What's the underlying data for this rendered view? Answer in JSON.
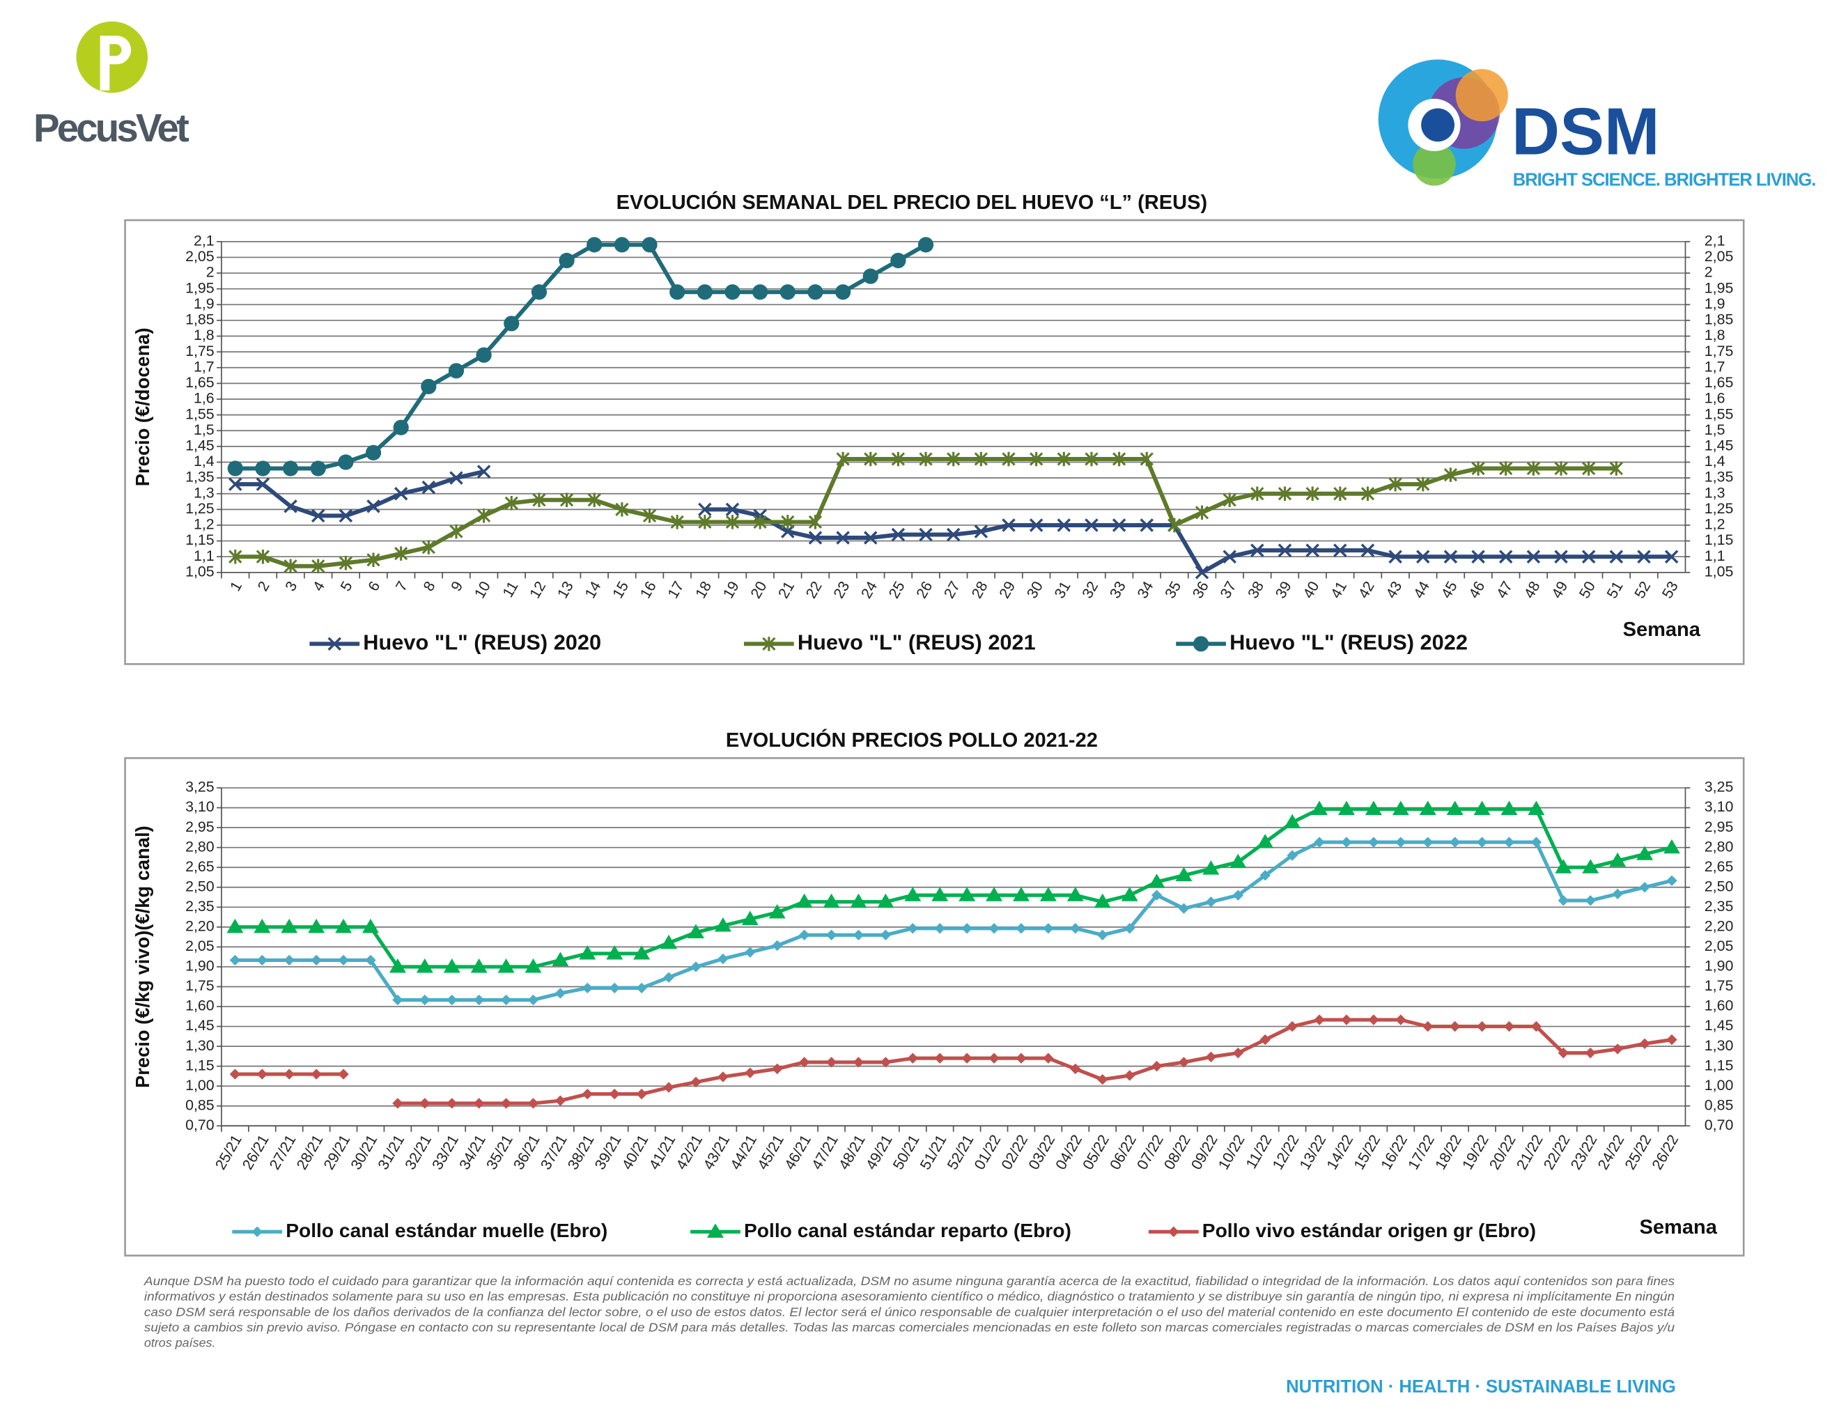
{
  "header": {
    "left_logo": "PecusVet",
    "right_logo": "DSM",
    "tagline": "BRIGHT SCIENCE. BRIGHTER LIVING."
  },
  "chart_data": [
    {
      "type": "line",
      "title": "EVOLUCIÓN SEMANAL DEL PRECIO DEL HUEVO “L” (REUS)",
      "ylabel": "Precio (€/docena)",
      "xlabel": "Semana",
      "categories": [
        "1",
        "2",
        "3",
        "4",
        "5",
        "6",
        "7",
        "8",
        "9",
        "10",
        "11",
        "12",
        "13",
        "14",
        "15",
        "16",
        "17",
        "18",
        "19",
        "20",
        "21",
        "22",
        "23",
        "24",
        "25",
        "26",
        "27",
        "28",
        "29",
        "30",
        "31",
        "32",
        "33",
        "34",
        "35",
        "36",
        "37",
        "38",
        "39",
        "40",
        "41",
        "42",
        "43",
        "44",
        "45",
        "46",
        "47",
        "48",
        "49",
        "50",
        "51",
        "52",
        "53"
      ],
      "ylim": [
        1.05,
        2.1
      ],
      "yticks": [
        {
          "value": 1.05,
          "label": "1,05"
        },
        {
          "value": 1.1,
          "label": "1,1"
        },
        {
          "value": 1.15,
          "label": "1,15"
        },
        {
          "value": 1.2,
          "label": "1,2"
        },
        {
          "value": 1.25,
          "label": "1,25"
        },
        {
          "value": 1.3,
          "label": "1,3"
        },
        {
          "value": 1.35,
          "label": "1,35"
        },
        {
          "value": 1.4,
          "label": "1,4"
        },
        {
          "value": 1.45,
          "label": "1,45"
        },
        {
          "value": 1.5,
          "label": "1,5"
        },
        {
          "value": 1.55,
          "label": "1,55"
        },
        {
          "value": 1.6,
          "label": "1,6"
        },
        {
          "value": 1.65,
          "label": "1,65"
        },
        {
          "value": 1.7,
          "label": "1,7"
        },
        {
          "value": 1.75,
          "label": "1,75"
        },
        {
          "value": 1.8,
          "label": "1,8"
        },
        {
          "value": 1.85,
          "label": "1,85"
        },
        {
          "value": 1.9,
          "label": "1,9"
        },
        {
          "value": 1.95,
          "label": "1,95"
        },
        2,
        {
          "value": 2.05,
          "label": "2,05"
        },
        {
          "value": 2.1,
          "label": "2,1"
        }
      ],
      "grid": true,
      "mirror_y_axis": true,
      "series": [
        {
          "name": "Huevo \"L\" (REUS) 2020",
          "color": "#2e4a7a",
          "marker": "x",
          "values": [
            1.33,
            1.33,
            1.26,
            1.23,
            1.23,
            1.26,
            1.3,
            1.32,
            1.35,
            1.37,
            null,
            null,
            null,
            null,
            null,
            null,
            null,
            1.25,
            1.25,
            1.23,
            1.18,
            1.16,
            1.16,
            1.16,
            1.17,
            1.17,
            1.17,
            1.18,
            1.2,
            1.2,
            1.2,
            1.2,
            1.2,
            1.2,
            1.2,
            1.05,
            1.1,
            1.12,
            1.12,
            1.12,
            1.12,
            1.12,
            1.1,
            1.1,
            1.1,
            1.1,
            1.1,
            1.1,
            1.1,
            1.1,
            1.1,
            1.1,
            1.1
          ]
        },
        {
          "name": "Huevo \"L\" (REUS) 2021",
          "color": "#5e7a2a",
          "marker": "asterisk",
          "values": [
            1.1,
            1.1,
            1.07,
            1.07,
            1.08,
            1.09,
            1.11,
            1.13,
            1.18,
            1.23,
            1.27,
            1.28,
            1.28,
            1.28,
            1.25,
            1.23,
            1.21,
            1.21,
            1.21,
            1.21,
            1.21,
            1.21,
            1.41,
            1.41,
            1.41,
            1.41,
            1.41,
            1.41,
            1.41,
            1.41,
            1.41,
            1.41,
            1.41,
            1.41,
            1.2,
            1.24,
            1.28,
            1.3,
            1.3,
            1.3,
            1.3,
            1.3,
            1.33,
            1.33,
            1.36,
            1.38,
            1.38,
            1.38,
            1.38,
            1.38,
            1.38,
            null,
            null
          ]
        },
        {
          "name": "Huevo \"L\" (REUS) 2022",
          "color": "#1f6b7a",
          "marker": "circle",
          "values": [
            1.38,
            1.38,
            1.38,
            1.38,
            1.4,
            1.43,
            1.51,
            1.64,
            1.69,
            1.74,
            1.84,
            1.94,
            2.04,
            2.09,
            2.09,
            2.09,
            1.94,
            1.94,
            1.94,
            1.94,
            1.94,
            1.94,
            1.94,
            1.99,
            2.04,
            2.09,
            null,
            null,
            null,
            null,
            null,
            null,
            null,
            null,
            null,
            null,
            null,
            null,
            null,
            null,
            null,
            null,
            null,
            null,
            null,
            null,
            null,
            null,
            null,
            null,
            null,
            null,
            null
          ]
        }
      ]
    },
    {
      "type": "line",
      "title": "EVOLUCIÓN PRECIOS POLLO 2021-22",
      "ylabel": "Precio (€/kg vivo)(€/kg canal)",
      "xlabel": "Semana",
      "categories": [
        "25/21",
        "26/21",
        "27/21",
        "28/21",
        "29/21",
        "30/21",
        "31/21",
        "32/21",
        "33/21",
        "34/21",
        "35/21",
        "36/21",
        "37/21",
        "38/21",
        "39/21",
        "40/21",
        "41/21",
        "42/21",
        "43/21",
        "44/21",
        "45/21",
        "46/21",
        "47/21",
        "48/21",
        "49/21",
        "50/21",
        "51/21",
        "52/21",
        "01/22",
        "02/22",
        "03/22",
        "04/22",
        "05/22",
        "06/22",
        "07/22",
        "08/22",
        "09/22",
        "10/22",
        "11/22",
        "12/22",
        "13/22",
        "14/22",
        "15/22",
        "16/22",
        "17/22",
        "18/22",
        "19/22",
        "20/22",
        "21/22",
        "22/22",
        "23/22",
        "24/22",
        "25/22",
        "26/22"
      ],
      "ylim": [
        0.7,
        3.25
      ],
      "yticks": [
        {
          "value": 0.7,
          "label": "0,70"
        },
        {
          "value": 0.85,
          "label": "0,85"
        },
        {
          "value": 1,
          "label": "1,00"
        },
        {
          "value": 1.15,
          "label": "1,15"
        },
        {
          "value": 1.3,
          "label": "1,30"
        },
        {
          "value": 1.45,
          "label": "1,45"
        },
        {
          "value": 1.6,
          "label": "1,60"
        },
        {
          "value": 1.75,
          "label": "1,75"
        },
        {
          "value": 1.9,
          "label": "1,90"
        },
        {
          "value": 2.05,
          "label": "2,05"
        },
        {
          "value": 2.2,
          "label": "2,20"
        },
        {
          "value": 2.35,
          "label": "2,35"
        },
        {
          "value": 2.5,
          "label": "2,50"
        },
        {
          "value": 2.65,
          "label": "2,65"
        },
        {
          "value": 2.8,
          "label": "2,80"
        },
        {
          "value": 2.95,
          "label": "2,95"
        },
        {
          "value": 3.1,
          "label": "3,10"
        },
        {
          "value": 3.25,
          "label": "3,25"
        }
      ],
      "grid": true,
      "mirror_y_axis": true,
      "series": [
        {
          "name": "Pollo canal estándar muelle (Ebro)",
          "color": "#4bacc6",
          "marker": "diamond",
          "values": [
            1.95,
            1.95,
            1.95,
            1.95,
            1.95,
            1.95,
            1.65,
            1.65,
            1.65,
            1.65,
            1.65,
            1.65,
            1.7,
            1.74,
            1.74,
            1.74,
            1.82,
            1.9,
            1.96,
            2.01,
            2.06,
            2.14,
            2.14,
            2.14,
            2.14,
            2.19,
            2.19,
            2.19,
            2.19,
            2.19,
            2.19,
            2.19,
            2.14,
            2.19,
            2.44,
            2.34,
            2.39,
            2.44,
            2.59,
            2.74,
            2.84,
            2.84,
            2.84,
            2.84,
            2.84,
            2.84,
            2.84,
            2.84,
            2.84,
            2.4,
            2.4,
            2.45,
            2.5,
            2.55
          ]
        },
        {
          "name": "Pollo canal estándar reparto (Ebro)",
          "color": "#00b050",
          "marker": "triangle",
          "values": [
            2.2,
            2.2,
            2.2,
            2.2,
            2.2,
            2.2,
            1.9,
            1.9,
            1.9,
            1.9,
            1.9,
            1.9,
            1.95,
            2.0,
            2.0,
            2.0,
            2.08,
            2.16,
            2.21,
            2.26,
            2.31,
            2.39,
            2.39,
            2.39,
            2.39,
            2.44,
            2.44,
            2.44,
            2.44,
            2.44,
            2.44,
            2.44,
            2.39,
            2.44,
            2.54,
            2.59,
            2.64,
            2.69,
            2.84,
            2.99,
            3.09,
            3.09,
            3.09,
            3.09,
            3.09,
            3.09,
            3.09,
            3.09,
            3.09,
            2.65,
            2.65,
            2.7,
            2.75,
            2.8
          ]
        },
        {
          "name": "Pollo vivo estándar origen gr (Ebro)",
          "color": "#c0504d",
          "marker": "diamond",
          "values": [
            1.09,
            1.09,
            1.09,
            1.09,
            1.09,
            null,
            0.87,
            0.87,
            0.87,
            0.87,
            0.87,
            0.87,
            0.89,
            0.94,
            0.94,
            0.94,
            0.99,
            1.03,
            1.07,
            1.1,
            1.13,
            1.18,
            1.18,
            1.18,
            1.18,
            1.21,
            1.21,
            1.21,
            1.21,
            1.21,
            1.21,
            1.13,
            1.05,
            1.08,
            1.15,
            1.18,
            1.22,
            1.25,
            1.35,
            1.45,
            1.5,
            1.5,
            1.5,
            1.5,
            1.45,
            1.45,
            1.45,
            1.45,
            1.45,
            1.25,
            1.25,
            1.28,
            1.32,
            1.35
          ]
        }
      ]
    }
  ],
  "disclaimer": [
    "Aunque DSM ha puesto todo el cuidado para garantizar que la información aquí contenida es correcta y está actualizada, DSM no asume ninguna garantía acerca de la exactitud, fiabilidad o integridad de la información. Los datos aquí contenidos son para fines",
    "informativos y están destinados solamente para su uso en las empresas. Esta publicación no constituye ni proporciona asesoramiento científico o médico, diagnóstico o tratamiento y se distribuye sin garantía de ningún tipo, ni expresa ni implícitamente En ningún",
    "caso DSM será responsable de los daños derivados de la confianza del lector sobre, o el uso de estos datos. El lector será el único responsable de cualquier interpretación o el uso del material contenido en este documento El contenido de este documento está",
    "sujeto a cambios sin previo aviso. Póngase en contacto con su representante local de DSM para más detalles. Todas las marcas comerciales mencionadas en este folleto son marcas comerciales registradas o marcas comerciales de DSM en los Países Bajos y/u",
    "otros países."
  ],
  "footer": "NUTRITION · HEALTH · SUSTAINABLE LIVING"
}
